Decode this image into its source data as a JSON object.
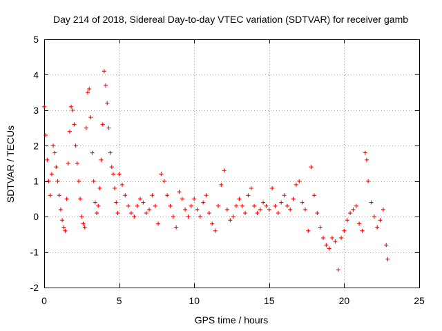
{
  "chart_data": {
    "type": "scatter",
    "title": "Day 214 of 2018, Sidereal Day-to-day VTEC variation (SDTVAR) for receiver gamb",
    "xlabel": "GPS time / hours",
    "ylabel": "SDTVAR / TECUs",
    "xlim": [
      0,
      25
    ],
    "ylim": [
      -2,
      5
    ],
    "xticks": [
      0,
      5,
      10,
      15,
      20,
      25
    ],
    "yticks": [
      -2,
      -1,
      0,
      1,
      2,
      3,
      4,
      5
    ],
    "xtick_labels": [
      "0",
      "5",
      "10",
      "15",
      "20",
      "25"
    ],
    "ytick_labels": [
      "-2",
      "-1",
      "0",
      "1",
      "2",
      "3",
      "4",
      "5"
    ],
    "grid": true,
    "marker": "plus",
    "color": "#ff0000",
    "series": [
      {
        "name": "SDTVAR",
        "x": [
          0.0,
          0.1,
          0.2,
          0.3,
          0.4,
          0.5,
          0.6,
          0.7,
          0.8,
          0.9,
          1.0,
          1.1,
          1.2,
          1.3,
          1.4,
          1.5,
          1.6,
          1.7,
          1.8,
          1.9,
          2.0,
          2.1,
          2.2,
          2.3,
          2.4,
          2.5,
          2.6,
          2.7,
          2.8,
          2.9,
          3.0,
          3.1,
          3.2,
          3.3,
          3.4,
          3.5,
          3.6,
          3.7,
          3.8,
          3.9,
          4.0,
          4.1,
          4.2,
          4.3,
          4.4,
          4.5,
          4.6,
          4.7,
          4.8,
          4.9,
          5.0,
          5.2,
          5.4,
          5.6,
          5.8,
          6.0,
          6.2,
          6.4,
          6.6,
          6.8,
          7.0,
          7.2,
          7.4,
          7.6,
          7.8,
          8.0,
          8.2,
          8.4,
          8.6,
          8.8,
          9.0,
          9.2,
          9.4,
          9.6,
          9.8,
          10.0,
          10.2,
          10.4,
          10.6,
          10.8,
          11.0,
          11.2,
          11.4,
          11.6,
          11.8,
          12.0,
          12.2,
          12.4,
          12.6,
          12.8,
          13.0,
          13.2,
          13.4,
          13.6,
          13.8,
          14.0,
          14.2,
          14.4,
          14.6,
          14.8,
          15.0,
          15.2,
          15.4,
          15.6,
          15.8,
          16.0,
          16.2,
          16.4,
          16.6,
          16.8,
          17.0,
          17.2,
          17.4,
          17.6,
          17.8,
          18.0,
          18.2,
          18.4,
          18.6,
          18.8,
          19.0,
          19.2,
          19.4,
          19.6,
          19.8,
          20.0,
          20.2,
          20.4,
          20.6,
          20.8,
          21.0,
          21.2,
          21.4,
          21.5,
          21.6,
          21.8,
          22.0,
          22.2,
          22.4,
          22.6,
          22.8,
          22.9
        ],
        "y": [
          3.1,
          2.3,
          1.6,
          1.0,
          0.6,
          1.2,
          2.0,
          1.8,
          1.4,
          1.0,
          0.6,
          0.2,
          -0.1,
          -0.3,
          -0.4,
          0.5,
          1.5,
          2.4,
          3.1,
          3.0,
          2.6,
          2.0,
          1.5,
          1.0,
          0.5,
          0.0,
          -0.2,
          -0.3,
          2.5,
          3.5,
          3.6,
          2.8,
          1.8,
          1.0,
          0.4,
          0.1,
          0.3,
          0.8,
          1.6,
          2.6,
          4.1,
          3.7,
          3.2,
          2.5,
          1.8,
          1.4,
          1.2,
          0.8,
          0.4,
          0.1,
          1.2,
          0.9,
          0.6,
          0.3,
          0.1,
          0.0,
          0.3,
          0.5,
          0.4,
          0.1,
          0.2,
          0.6,
          0.3,
          -0.2,
          1.2,
          1.0,
          0.6,
          0.3,
          0.0,
          -0.3,
          0.7,
          0.5,
          0.2,
          0.0,
          0.3,
          0.5,
          0.2,
          0.0,
          0.4,
          0.6,
          0.1,
          -0.2,
          -0.4,
          0.3,
          0.9,
          1.3,
          0.2,
          -0.1,
          0.0,
          0.3,
          0.5,
          0.3,
          0.1,
          0.6,
          0.8,
          0.3,
          0.1,
          0.2,
          0.4,
          0.3,
          0.2,
          0.8,
          0.3,
          0.1,
          0.4,
          0.6,
          0.3,
          0.2,
          0.5,
          0.9,
          1.0,
          0.4,
          0.2,
          -0.4,
          1.4,
          0.6,
          0.1,
          -0.3,
          -0.6,
          -0.8,
          -0.9,
          -0.6,
          -0.7,
          -1.5,
          -0.6,
          -0.4,
          -0.1,
          0.1,
          0.2,
          0.3,
          -0.2,
          -0.4,
          1.8,
          1.6,
          1.0,
          0.4,
          0.0,
          -0.3,
          -0.1,
          0.2,
          -0.8,
          -1.2
        ]
      }
    ]
  }
}
